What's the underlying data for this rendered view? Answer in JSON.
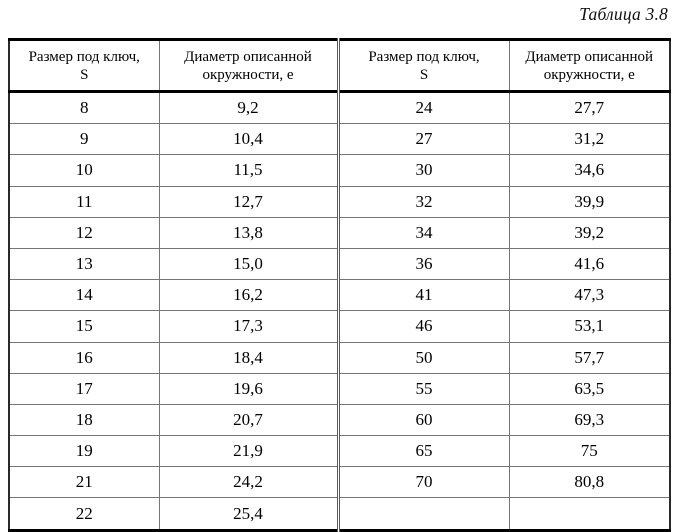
{
  "title": "Таблица 3.8",
  "table": {
    "headers": [
      {
        "line1": "Размер под ключ,",
        "line2": "S"
      },
      {
        "line1": "Диаметр описанной",
        "line2": "окружности, е"
      },
      {
        "line1": "Размер под ключ,",
        "line2": "S"
      },
      {
        "line1": "Диаметр описанной",
        "line2": "окружности, е"
      }
    ],
    "rows": [
      [
        "8",
        "9,2",
        "24",
        "27,7"
      ],
      [
        "9",
        "10,4",
        "27",
        "31,2"
      ],
      [
        "10",
        "11,5",
        "30",
        "34,6"
      ],
      [
        "11",
        "12,7",
        "32",
        "39,9"
      ],
      [
        "12",
        "13,8",
        "34",
        "39,2"
      ],
      [
        "13",
        "15,0",
        "36",
        "41,6"
      ],
      [
        "14",
        "16,2",
        "41",
        "47,3"
      ],
      [
        "15",
        "17,3",
        "46",
        "53,1"
      ],
      [
        "16",
        "18,4",
        "50",
        "57,7"
      ],
      [
        "17",
        "19,6",
        "55",
        "63,5"
      ],
      [
        "18",
        "20,7",
        "60",
        "69,3"
      ],
      [
        "19",
        "21,9",
        "65",
        "75"
      ],
      [
        "21",
        "24,2",
        "70",
        "80,8"
      ],
      [
        "22",
        "25,4",
        "",
        ""
      ]
    ]
  },
  "colors": {
    "background": "#ffffff",
    "text": "#000000",
    "outer_border": "#000000",
    "inner_grid": "#767676"
  }
}
